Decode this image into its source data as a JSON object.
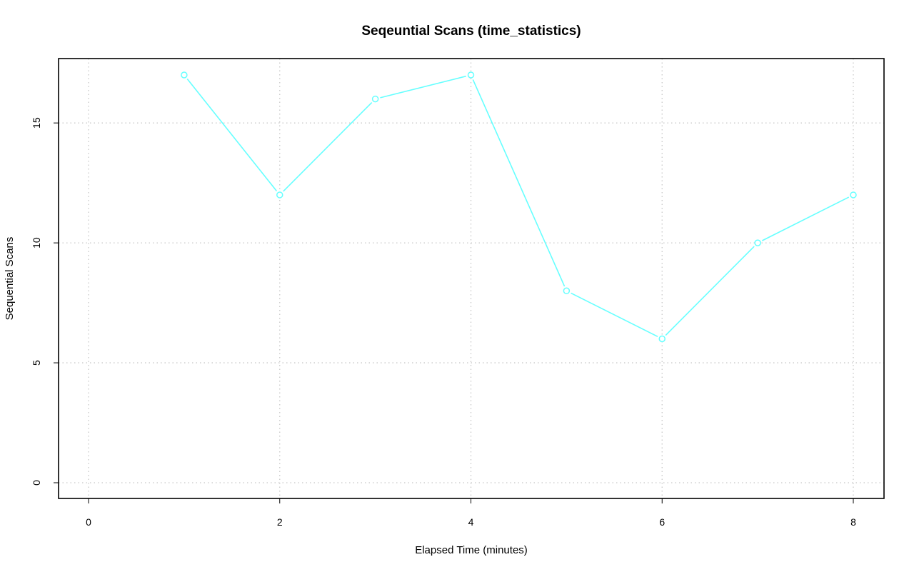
{
  "chart_data": {
    "type": "line",
    "title": "Seqeuntial Scans (time_statistics)",
    "xlabel": "Elapsed Time (minutes)",
    "ylabel": "Sequential Scans",
    "xlim": [
      0,
      8
    ],
    "ylim": [
      0,
      17
    ],
    "x_ticks": [
      0,
      2,
      4,
      6,
      8
    ],
    "y_ticks": [
      0,
      5,
      10,
      15
    ],
    "grid": true,
    "legend": "none",
    "series": [
      {
        "color": "#66ffff",
        "marker": "open-circle",
        "x": [
          1,
          2,
          3,
          4,
          5,
          6,
          7,
          8
        ],
        "y": [
          17,
          12,
          16,
          17,
          8,
          6,
          10,
          12
        ]
      }
    ]
  }
}
